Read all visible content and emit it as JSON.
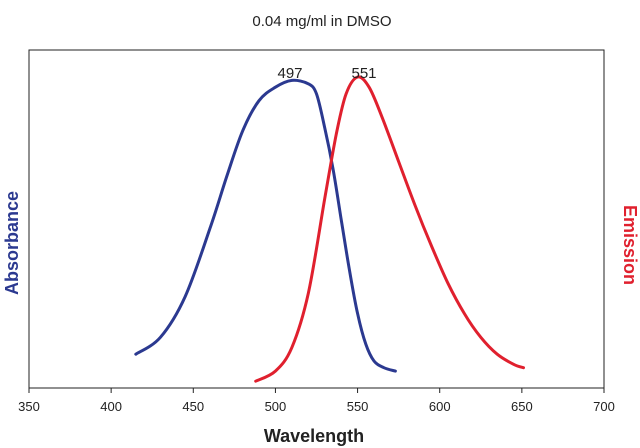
{
  "chart_data": {
    "type": "line",
    "title": "0.04 mg/ml in DMSO",
    "xlabel": "Wavelength",
    "ylabel_left": "Absorbance",
    "ylabel_right": "Emission",
    "xlim": [
      350,
      700
    ],
    "ylim": [
      0,
      1
    ],
    "x_ticks": [
      350,
      400,
      450,
      500,
      550,
      600,
      650,
      700
    ],
    "grid": false,
    "legend": "none",
    "peak_labels": [
      "497",
      "551"
    ],
    "series": [
      {
        "name": "Absorbance",
        "color": "#2b3990",
        "points": [
          [
            415,
            0.1
          ],
          [
            430,
            0.15
          ],
          [
            445,
            0.27
          ],
          [
            460,
            0.47
          ],
          [
            470,
            0.62
          ],
          [
            480,
            0.76
          ],
          [
            490,
            0.85
          ],
          [
            500,
            0.89
          ],
          [
            510,
            0.91
          ],
          [
            520,
            0.9
          ],
          [
            525,
            0.87
          ],
          [
            530,
            0.77
          ],
          [
            535,
            0.65
          ],
          [
            540,
            0.5
          ],
          [
            545,
            0.35
          ],
          [
            550,
            0.22
          ],
          [
            555,
            0.13
          ],
          [
            560,
            0.08
          ],
          [
            566,
            0.06
          ],
          [
            573,
            0.05
          ]
        ]
      },
      {
        "name": "Emission",
        "color": "#e0202e",
        "points": [
          [
            488,
            0.02
          ],
          [
            500,
            0.05
          ],
          [
            510,
            0.12
          ],
          [
            520,
            0.28
          ],
          [
            530,
            0.56
          ],
          [
            537,
            0.75
          ],
          [
            543,
            0.87
          ],
          [
            550,
            0.92
          ],
          [
            557,
            0.89
          ],
          [
            565,
            0.8
          ],
          [
            575,
            0.67
          ],
          [
            585,
            0.54
          ],
          [
            595,
            0.42
          ],
          [
            605,
            0.31
          ],
          [
            615,
            0.22
          ],
          [
            625,
            0.15
          ],
          [
            635,
            0.1
          ],
          [
            645,
            0.07
          ],
          [
            651,
            0.06
          ]
        ]
      }
    ]
  }
}
